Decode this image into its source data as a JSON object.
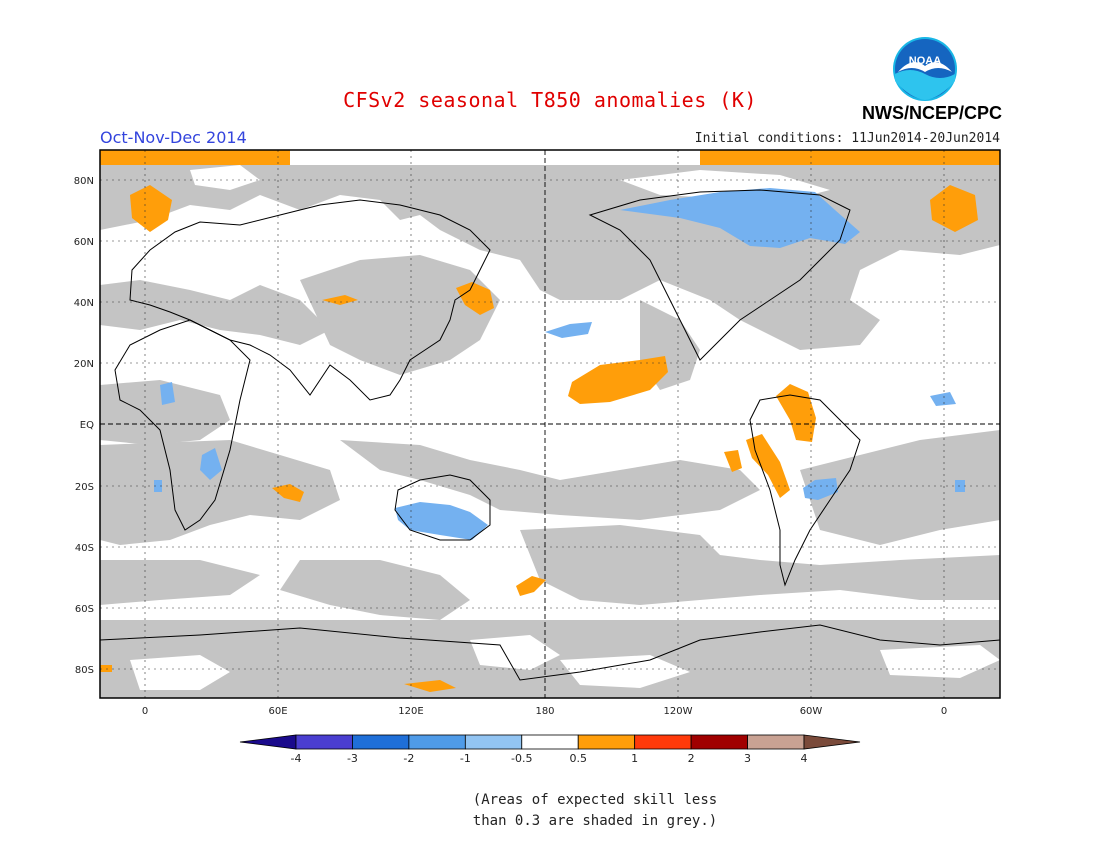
{
  "title": "CFSv2 seasonal T850 anomalies (K)",
  "season": "Oct-Nov-Dec 2014",
  "agency": "NWS/NCEP/CPC",
  "logo_text": "NOAA",
  "initial_conditions": "Initial conditions: 11Jun2014-20Jun2014",
  "lat_labels": [
    "80N",
    "60N",
    "40N",
    "20N",
    "EQ",
    "20S",
    "40S",
    "60S",
    "80S"
  ],
  "lon_labels": [
    "0",
    "60E",
    "120E",
    "180",
    "120W",
    "60W",
    "0"
  ],
  "colorbar": {
    "labels": [
      "-4",
      "-3",
      "-2",
      "-1",
      "-0.5",
      "0.5",
      "1",
      "2",
      "3",
      "4"
    ],
    "colors": [
      "#1a0a8c",
      "#4a3ed0",
      "#1f6fd8",
      "#4f9be8",
      "#92c4f2",
      "#ffffff",
      "#ff9e0a",
      "#ff3a0a",
      "#a00000",
      "#c9a293",
      "#7a4a3a"
    ]
  },
  "skill_mask_color": "#c4c4c4",
  "note_lines": [
    "(Areas of expected skill less",
    "than 0.3 are shaded in grey.)"
  ]
}
